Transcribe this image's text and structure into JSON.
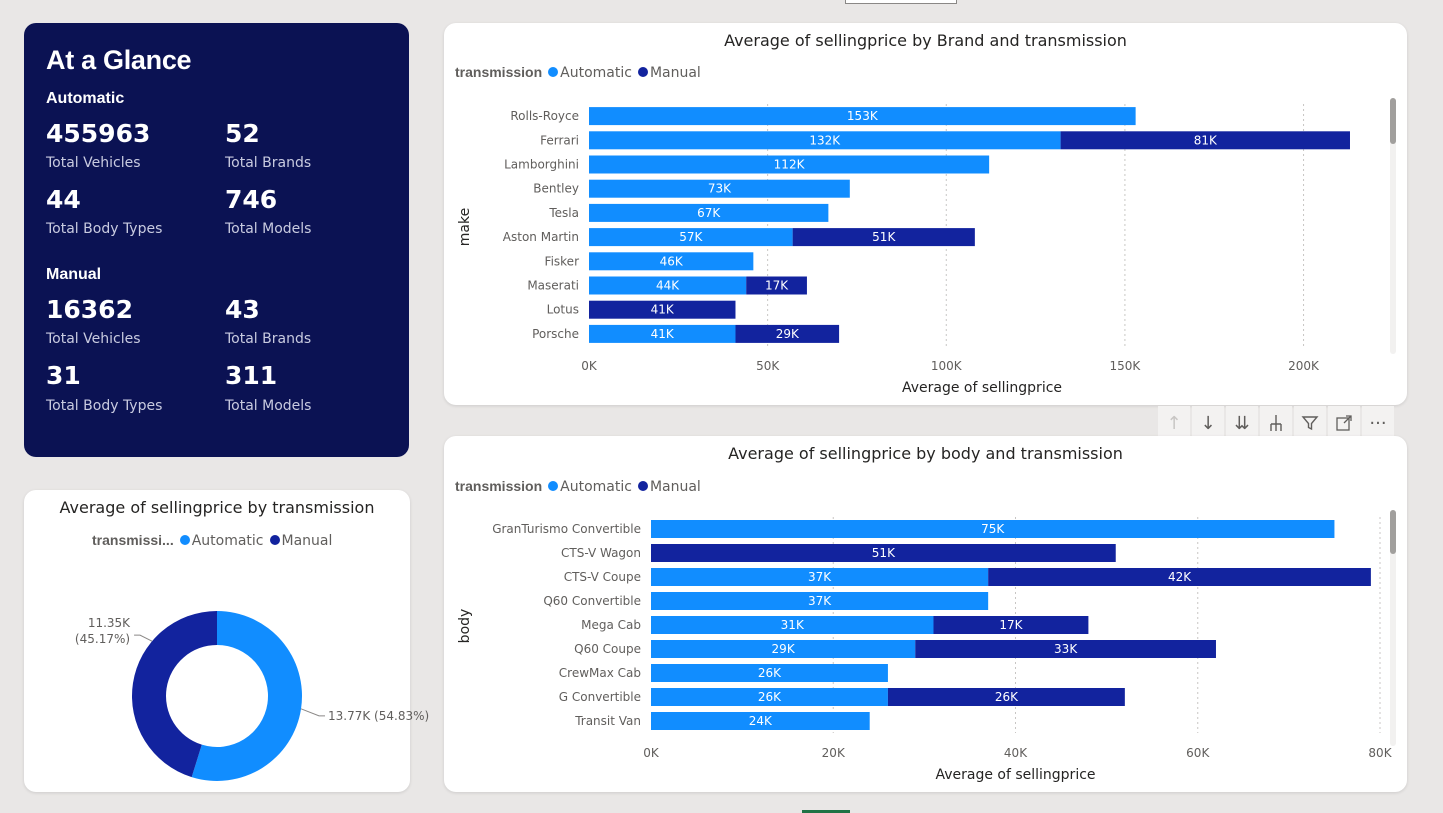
{
  "kpi": {
    "title": "At a Glance",
    "automatic": {
      "heading": "Automatic",
      "total_vehicles": "455963",
      "total_vehicles_label": "Total Vehicles",
      "total_brands": "52",
      "total_brands_label": "Total Brands",
      "total_body_types": "44",
      "total_body_types_label": "Total Body Types",
      "total_models": "746",
      "total_models_label": "Total Models"
    },
    "manual": {
      "heading": "Manual",
      "total_vehicles": "16362",
      "total_vehicles_label": "Total Vehicles",
      "total_brands": "43",
      "total_brands_label": "Total Brands",
      "total_body_types": "31",
      "total_body_types_label": "Total Body Types",
      "total_models": "311",
      "total_models_label": "Total Models"
    }
  },
  "colors": {
    "automatic": "#118dff",
    "manual": "#12239e",
    "kpi_bg": "#0b1253"
  },
  "chart_data": [
    {
      "type": "bar",
      "orientation": "horizontal-stacked",
      "title": "Average of sellingprice by Brand and transmission",
      "legend_title": "transmission",
      "xlabel": "Average of sellingprice",
      "ylabel": "make",
      "xlim": [
        0,
        220000
      ],
      "x_ticks": [
        "0K",
        "50K",
        "100K",
        "150K",
        "200K"
      ],
      "x_tick_values": [
        0,
        50000,
        100000,
        150000,
        200000
      ],
      "categories": [
        "Rolls-Royce",
        "Ferrari",
        "Lamborghini",
        "Bentley",
        "Tesla",
        "Aston Martin",
        "Fisker",
        "Maserati",
        "Lotus",
        "Porsche"
      ],
      "series": [
        {
          "name": "Automatic",
          "values": [
            153000,
            132000,
            112000,
            73000,
            67000,
            57000,
            46000,
            44000,
            null,
            41000
          ],
          "labels": [
            "153K",
            "132K",
            "112K",
            "73K",
            "67K",
            "57K",
            "46K",
            "44K",
            "",
            "41K"
          ]
        },
        {
          "name": "Manual",
          "values": [
            null,
            81000,
            null,
            null,
            null,
            51000,
            null,
            17000,
            41000,
            29000
          ],
          "labels": [
            "",
            "81K",
            "",
            "",
            "",
            "51K",
            "",
            "17K",
            "41K",
            "29K"
          ]
        }
      ],
      "grid": true,
      "legend_position": "top-left"
    },
    {
      "type": "bar",
      "orientation": "horizontal-stacked",
      "title": "Average of sellingprice by body and transmission",
      "legend_title": "transmission",
      "xlabel": "Average of sellingprice",
      "ylabel": "body",
      "xlim": [
        0,
        80000
      ],
      "x_ticks": [
        "0K",
        "20K",
        "40K",
        "60K",
        "80K"
      ],
      "x_tick_values": [
        0,
        20000,
        40000,
        60000,
        80000
      ],
      "categories": [
        "GranTurismo Convertible",
        "CTS-V Wagon",
        "CTS-V Coupe",
        "Q60 Convertible",
        "Mega Cab",
        "Q60 Coupe",
        "CrewMax Cab",
        "G Convertible",
        "Transit Van"
      ],
      "series": [
        {
          "name": "Automatic",
          "values": [
            75000,
            null,
            37000,
            37000,
            31000,
            29000,
            26000,
            26000,
            24000
          ],
          "labels": [
            "75K",
            "",
            "37K",
            "37K",
            "31K",
            "29K",
            "26K",
            "26K",
            "24K"
          ]
        },
        {
          "name": "Manual",
          "values": [
            null,
            51000,
            42000,
            null,
            17000,
            33000,
            null,
            26000,
            null
          ],
          "labels": [
            "",
            "51K",
            "42K",
            "",
            "17K",
            "33K",
            "",
            "26K",
            ""
          ]
        }
      ],
      "grid": true,
      "legend_position": "top-left"
    },
    {
      "type": "pie",
      "variant": "donut",
      "title": "Average of sellingprice by transmission",
      "legend_title": "transmissi...",
      "categories": [
        "Automatic",
        "Manual"
      ],
      "values": [
        13770,
        11350
      ],
      "labels": [
        "13.77K (54.83%)",
        "11.35K (45.17%)"
      ],
      "legend_position": "top"
    }
  ]
}
